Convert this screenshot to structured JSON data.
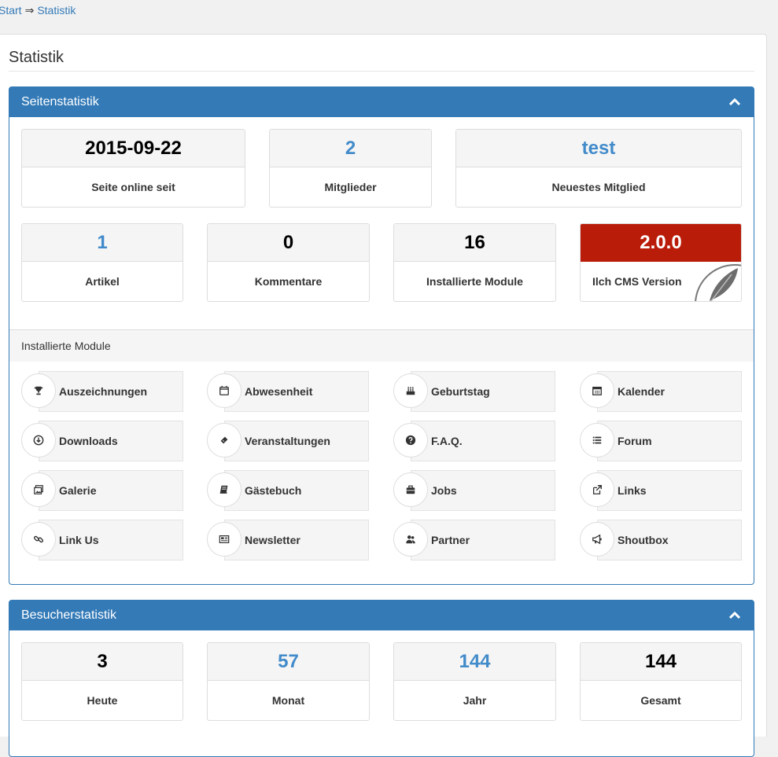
{
  "breadcrumb": {
    "start": "Start",
    "sep": "⇒",
    "current": "Statistik"
  },
  "page_title": "Statistik",
  "site_panel": {
    "title": "Seitenstatistik",
    "stats_row1": [
      {
        "value": "2015-09-22",
        "label": "Seite online seit",
        "style": ""
      },
      {
        "value": "2",
        "label": "Mitglieder",
        "style": "blue"
      },
      {
        "value": "test",
        "label": "Neuestes Mitglied",
        "style": "blue"
      }
    ],
    "stats_row2": [
      {
        "value": "1",
        "label": "Artikel",
        "style": "blue"
      },
      {
        "value": "0",
        "label": "Kommentare",
        "style": ""
      },
      {
        "value": "16",
        "label": "Installierte Module",
        "style": ""
      },
      {
        "value": "2.0.0",
        "label": "Ilch CMS Version",
        "style": "red"
      }
    ],
    "modules_heading": "Installierte Module",
    "modules": [
      {
        "label": "Auszeichnungen",
        "icon": "trophy-icon"
      },
      {
        "label": "Abwesenheit",
        "icon": "calendar-blank-icon"
      },
      {
        "label": "Geburtstag",
        "icon": "birthday-cake-icon"
      },
      {
        "label": "Kalender",
        "icon": "calendar-icon"
      },
      {
        "label": "Downloads",
        "icon": "download-circle-icon"
      },
      {
        "label": "Veranstaltungen",
        "icon": "ticket-icon"
      },
      {
        "label": "F.A.Q.",
        "icon": "question-circle-icon"
      },
      {
        "label": "Forum",
        "icon": "list-icon"
      },
      {
        "label": "Galerie",
        "icon": "gallery-icon"
      },
      {
        "label": "Gästebuch",
        "icon": "book-icon"
      },
      {
        "label": "Jobs",
        "icon": "briefcase-icon"
      },
      {
        "label": "Links",
        "icon": "external-link-icon"
      },
      {
        "label": "Link Us",
        "icon": "chain-link-icon"
      },
      {
        "label": "Newsletter",
        "icon": "newspaper-icon"
      },
      {
        "label": "Partner",
        "icon": "partner-icon"
      },
      {
        "label": "Shoutbox",
        "icon": "megaphone-icon"
      }
    ]
  },
  "visitor_panel": {
    "title": "Besucherstatistik",
    "stats": [
      {
        "value": "3",
        "label": "Heute",
        "style": ""
      },
      {
        "value": "57",
        "label": "Monat",
        "style": "blue"
      },
      {
        "value": "144",
        "label": "Jahr",
        "style": "blue"
      },
      {
        "value": "144",
        "label": "Gesamt",
        "style": ""
      }
    ]
  },
  "colors": {
    "primary": "#337ab7",
    "value_blue": "#428bca",
    "version_red": "#b91c09"
  }
}
